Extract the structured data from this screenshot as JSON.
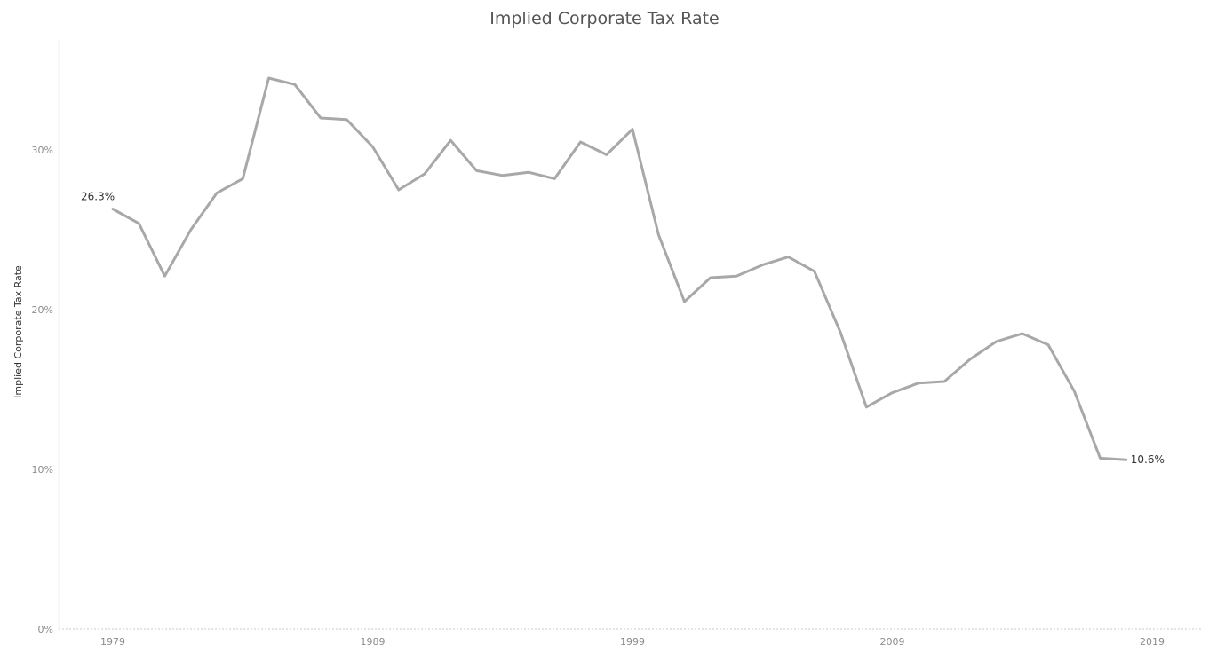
{
  "chart_data": {
    "type": "line",
    "title": "Implied Corporate Tax Rate",
    "xlabel": "",
    "ylabel": "Implied Corporate Tax Rate",
    "x": [
      1979,
      1980,
      1981,
      1982,
      1983,
      1984,
      1985,
      1986,
      1987,
      1988,
      1989,
      1990,
      1991,
      1992,
      1993,
      1994,
      1995,
      1996,
      1997,
      1998,
      1999,
      2000,
      2001,
      2002,
      2003,
      2004,
      2005,
      2006,
      2007,
      2008,
      2009,
      2010,
      2011,
      2012,
      2013,
      2014,
      2015,
      2016,
      2017,
      2018,
      2019
    ],
    "series": [
      {
        "name": "",
        "color": "#a8a8a8",
        "values": [
          26.3,
          25.4,
          22.1,
          25.0,
          27.3,
          28.2,
          34.5,
          34.1,
          32.0,
          31.9,
          30.2,
          27.5,
          28.5,
          30.6,
          28.7,
          28.4,
          28.6,
          28.2,
          30.5,
          29.7,
          31.3,
          24.7,
          20.5,
          22.0,
          22.1,
          22.8,
          23.3,
          22.4,
          18.6,
          13.9,
          14.8,
          15.4,
          15.5,
          16.9,
          18.0,
          18.5,
          17.8,
          14.9,
          10.7,
          10.6,
          null
        ]
      }
    ],
    "xticks": [
      "1979",
      "1989",
      "1999",
      "2009",
      "2019"
    ],
    "yticks": [
      "0%",
      "10%",
      "20%",
      "30%"
    ],
    "ytick_values": [
      0,
      10,
      20,
      30
    ],
    "ylim": [
      0,
      36
    ],
    "xlim": [
      1979,
      2019
    ],
    "annotations": [
      {
        "text": "26.3%",
        "x": 1979,
        "y": 26.3
      },
      {
        "text": "10.6%",
        "x": 2018,
        "y": 10.6
      }
    ],
    "grid": false
  }
}
